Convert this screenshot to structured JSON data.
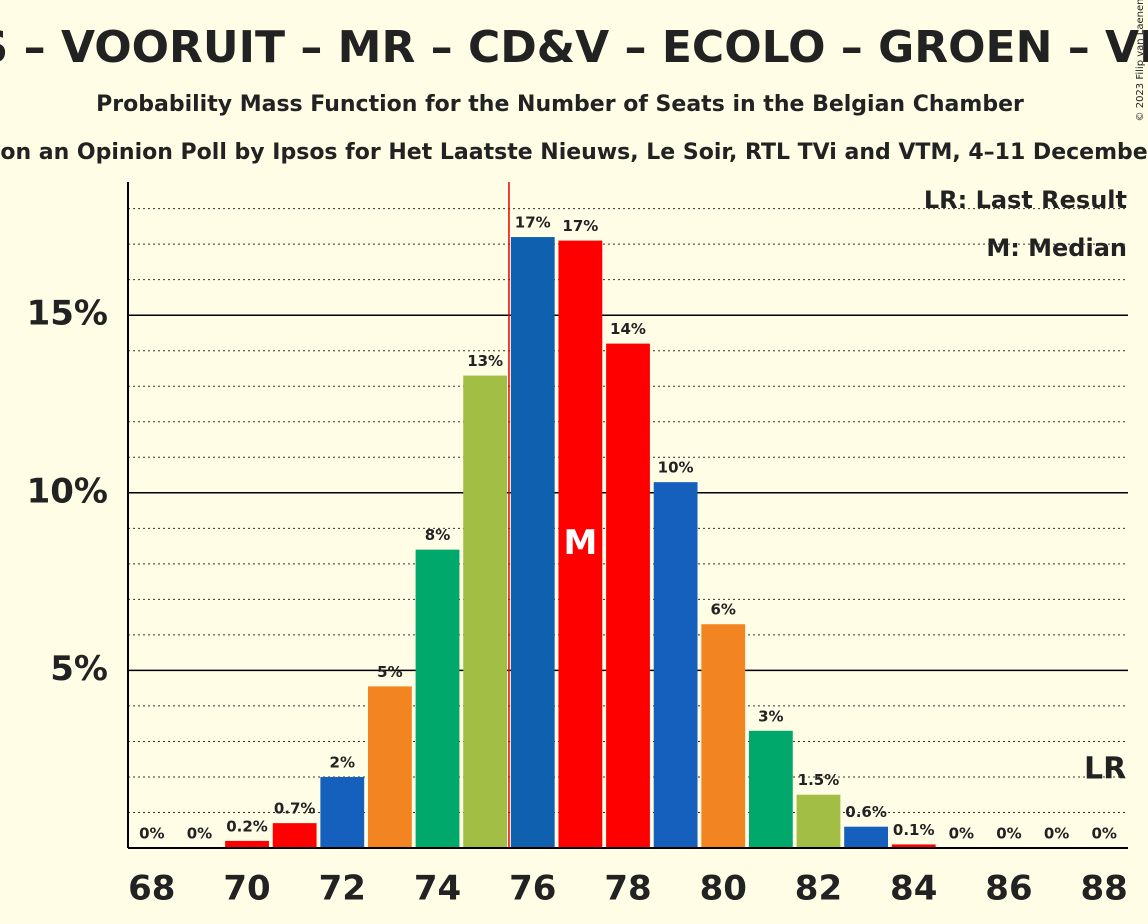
{
  "chart_data": {
    "type": "bar",
    "title": "PS – VOORUIT – MR – CD&V – ECOLO – GROEN – VLD",
    "subtitle": "Probability Mass Function for the Number of Seats in the Belgian Chamber",
    "source_note": "on an Opinion Poll by Ipsos for Het Laatste Nieuws, Le Soir, RTL TVi and VTM, 4–11 Decembe",
    "copyright": "© 2023 Filip van Laenen",
    "x": [
      68,
      69,
      70,
      71,
      72,
      73,
      74,
      75,
      76,
      77,
      78,
      79,
      80,
      81,
      82,
      83,
      84,
      85,
      86,
      87,
      88
    ],
    "values": [
      0,
      0,
      0.2,
      0.7,
      2.0,
      4.55,
      8.4,
      13.3,
      17.2,
      17.1,
      14.2,
      10.3,
      6.3,
      3.3,
      1.5,
      0.6,
      0.1,
      0,
      0,
      0,
      0
    ],
    "value_labels": [
      "0%",
      "0%",
      "0.2%",
      "0.7%",
      "2%",
      "5%",
      "8%",
      "13%",
      "17%",
      "17%",
      "14%",
      "10%",
      "6%",
      "3%",
      "1.5%",
      "0.6%",
      "0.1%",
      "0%",
      "0%",
      "0%",
      "0%"
    ],
    "colors": [
      "#ff0000",
      "#ff0000",
      "#ff0000",
      "#ff0000",
      "#1560bd",
      "#f28522",
      "#00a86b",
      "#a3be44",
      "#1060b0",
      "#ff0000",
      "#ff0000",
      "#1560bd",
      "#f28522",
      "#00a86b",
      "#a3be44",
      "#1560bd",
      "#ff0000",
      "#ff0000",
      "#ff0000",
      "#ff0000",
      "#ff0000"
    ],
    "xlim": [
      67.5,
      88.5
    ],
    "xticks": [
      68,
      70,
      72,
      74,
      76,
      78,
      80,
      82,
      84,
      86,
      88
    ],
    "ylim": [
      0,
      18.75
    ],
    "yticks": [
      {
        "value": 5,
        "label": "5%"
      },
      {
        "value": 10,
        "label": "10%"
      },
      {
        "value": 15,
        "label": "15%"
      }
    ],
    "minor_yticks": [
      1,
      2,
      3,
      4,
      6,
      7,
      8,
      9,
      11,
      12,
      13,
      14,
      16,
      17,
      18
    ],
    "threshold": 75.5,
    "median": {
      "x": 77,
      "label": "M"
    },
    "last_result": {
      "x": 88,
      "label": "LR"
    },
    "legend": [
      "LR: Last Result",
      "M: Median"
    ]
  }
}
